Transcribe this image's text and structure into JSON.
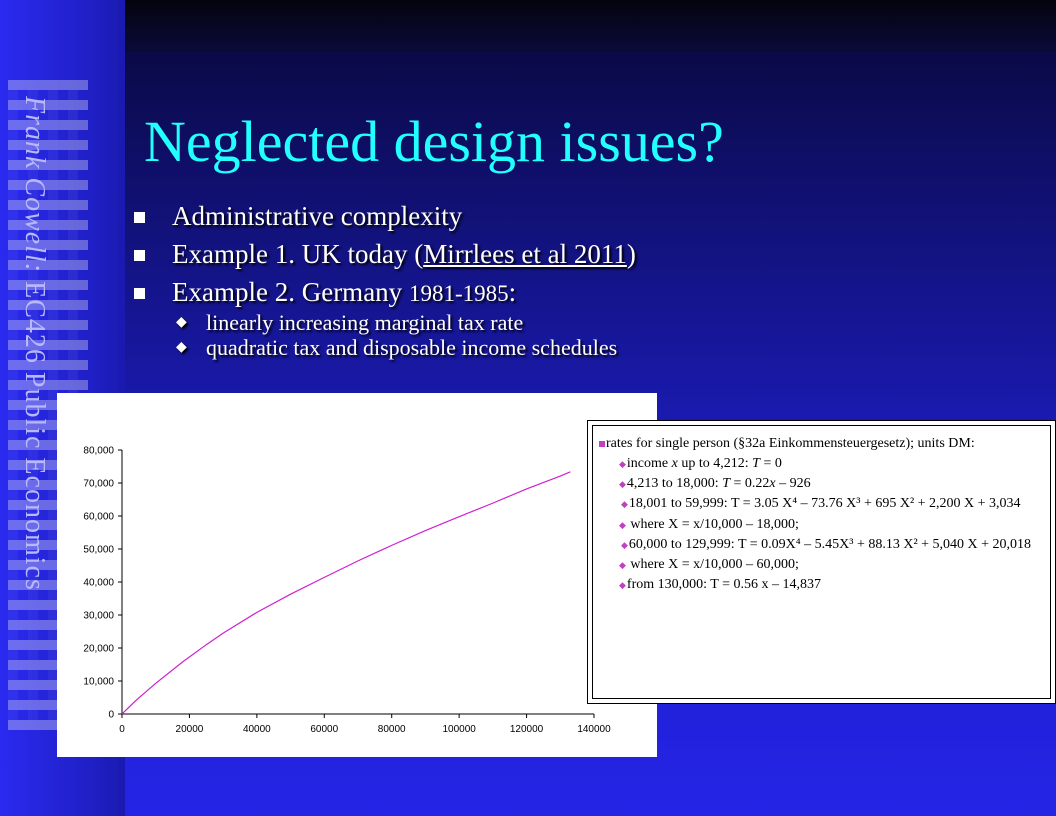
{
  "sidebar": {
    "author": "Frank Cowell:",
    "course": " EC426 Public Economics"
  },
  "title": "Neglected design issues?",
  "bullets": {
    "b1": "Administrative complexity",
    "b2_prefix": "Example 1. UK today (",
    "b2_link": "Mirrlees et al 2011",
    "b2_suffix": ")",
    "b3_prefix": "Example 2. Germany ",
    "b3_years": "1981-1985",
    "b3_suffix": ":",
    "sub1": "linearly increasing marginal tax rate",
    "sub2": "quadratic tax and disposable income schedules"
  },
  "chart_data": {
    "type": "line",
    "title": "",
    "xlabel": "",
    "ylabel": "",
    "xlim": [
      0,
      140000
    ],
    "ylim": [
      0,
      80000
    ],
    "x_ticks": [
      "0",
      "20000",
      "40000",
      "60000",
      "80000",
      "100000",
      "120000",
      "140000"
    ],
    "y_ticks": [
      "0",
      "10,000",
      "20,000",
      "30,000",
      "40,000",
      "50,000",
      "60,000",
      "70,000",
      "80,000"
    ],
    "series": [
      {
        "color": "#d020d0",
        "x": [
          0,
          4213,
          10000,
          18000,
          25000,
          30000,
          40000,
          50000,
          60000,
          70000,
          80000,
          90000,
          100000,
          110000,
          120000,
          130000,
          133000
        ],
        "y": [
          0,
          4200,
          9300,
          15800,
          21000,
          24500,
          30800,
          36300,
          41400,
          46400,
          51100,
          55600,
          59800,
          63900,
          68200,
          72100,
          73400
        ]
      }
    ],
    "grid": false,
    "legend": "none"
  },
  "note": {
    "intro": "rates for single person (§32a  Einkommensteuergesetz); units DM:",
    "l1_a": "income ",
    "l1_x": "x",
    "l1_b": " up to 4,212: ",
    "l1_T": "T",
    "l1_c": " = 0",
    "l2_a": "4,213 to 18,000: ",
    "l2_T": "T",
    "l2_b": " = 0.22",
    "l2_x": "x",
    "l2_c": " – 926",
    "l3": "18,001 to 59,999: T =  3.05 X⁴ – 73.76 X³ + 695 X² + 2,200 X + 3,034",
    "l4": " where   X = x/10,000 – 18,000;",
    "l5": "60,000 to 129,999: T = 0.09X⁴ – 5.45X³ + 88.13 X² + 5,040 X + 20,018",
    "l6": " where X = x/10,000 – 60,000;",
    "l7": "from 130,000:    T = 0.56 x – 14,837"
  }
}
